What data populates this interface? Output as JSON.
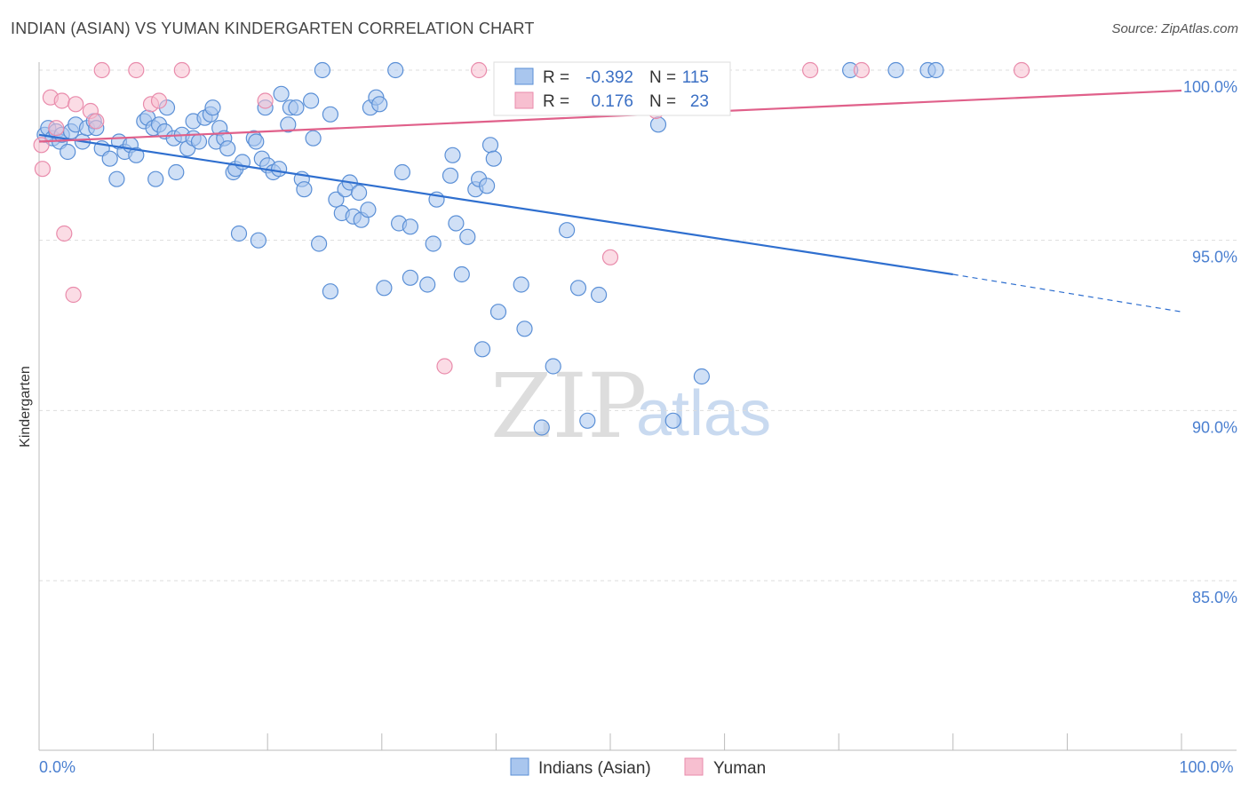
{
  "header": {
    "title": "INDIAN (ASIAN) VS YUMAN KINDERGARTEN CORRELATION CHART",
    "source": "Source: ZipAtlas.com"
  },
  "legend": {
    "r_label": "R =",
    "n_label": "N =",
    "rows": [
      {
        "r": "-0.392",
        "n": "115"
      },
      {
        "r": "0.176",
        "n": "23"
      }
    ]
  },
  "bottom_legend": [
    "Indians (Asian)",
    "Yuman"
  ],
  "watermark": {
    "zip": "ZIP",
    "atlas": "atlas"
  },
  "chart_data": {
    "type": "scatter",
    "ylabel": "Kindergarten",
    "xlim": [
      0,
      100
    ],
    "ylim": [
      80.5,
      101.0
    ],
    "x_tick_labels": [
      {
        "value": 0,
        "label": "0.0%"
      },
      {
        "value": 100,
        "label": "100.0%"
      }
    ],
    "y_ticks": [
      {
        "value": 100,
        "label": "100.0%"
      },
      {
        "value": 95,
        "label": "95.0%"
      },
      {
        "value": 90,
        "label": "90.0%"
      },
      {
        "value": 85,
        "label": "85.0%"
      }
    ],
    "grid": true,
    "colors": {
      "blue_fill": "#a9c6ee",
      "blue_stroke": "#5a8fd6",
      "blue_line": "#2f6fcf",
      "pink_fill": "#f7bfd0",
      "pink_stroke": "#e98bab",
      "pink_line": "#e0608a",
      "tick": "#4a7fd0"
    },
    "series": [
      {
        "name": "Indians (Asian)",
        "trend": {
          "x0": 0,
          "y0": 98.1,
          "x1": 80,
          "y1": 94.0,
          "dash_to_x": 100,
          "dash_to_y": 92.9
        },
        "points": [
          [
            0.5,
            98.1
          ],
          [
            0.8,
            98.3
          ],
          [
            1.2,
            98.0
          ],
          [
            1.5,
            98.2
          ],
          [
            1.8,
            97.9
          ],
          [
            2.0,
            98.1
          ],
          [
            2.5,
            97.6
          ],
          [
            2.8,
            98.2
          ],
          [
            3.2,
            98.4
          ],
          [
            3.8,
            97.9
          ],
          [
            4.2,
            98.3
          ],
          [
            4.8,
            98.5
          ],
          [
            5.0,
            98.3
          ],
          [
            5.5,
            97.7
          ],
          [
            6.2,
            97.4
          ],
          [
            6.8,
            96.8
          ],
          [
            7.0,
            97.9
          ],
          [
            7.5,
            97.6
          ],
          [
            8.0,
            97.8
          ],
          [
            8.5,
            97.5
          ],
          [
            9.2,
            98.5
          ],
          [
            9.5,
            98.6
          ],
          [
            10.0,
            98.3
          ],
          [
            10.2,
            96.8
          ],
          [
            10.5,
            98.4
          ],
          [
            11.0,
            98.2
          ],
          [
            11.2,
            98.9
          ],
          [
            11.8,
            98.0
          ],
          [
            12.0,
            97.0
          ],
          [
            12.5,
            98.1
          ],
          [
            13.0,
            97.7
          ],
          [
            13.5,
            98.0
          ],
          [
            13.5,
            98.5
          ],
          [
            14.0,
            97.9
          ],
          [
            14.5,
            98.6
          ],
          [
            15.0,
            98.7
          ],
          [
            15.2,
            98.9
          ],
          [
            15.5,
            97.9
          ],
          [
            15.8,
            98.3
          ],
          [
            16.2,
            98.0
          ],
          [
            16.5,
            97.7
          ],
          [
            17.0,
            97.0
          ],
          [
            17.2,
            97.1
          ],
          [
            17.5,
            95.2
          ],
          [
            17.8,
            97.3
          ],
          [
            18.8,
            98.0
          ],
          [
            19.0,
            97.9
          ],
          [
            19.2,
            95.0
          ],
          [
            19.5,
            97.4
          ],
          [
            19.8,
            98.9
          ],
          [
            20.0,
            97.2
          ],
          [
            20.5,
            97.0
          ],
          [
            21.0,
            97.1
          ],
          [
            21.2,
            99.3
          ],
          [
            21.8,
            98.4
          ],
          [
            22.0,
            98.9
          ],
          [
            22.5,
            98.9
          ],
          [
            23.0,
            96.8
          ],
          [
            23.2,
            96.5
          ],
          [
            23.8,
            99.1
          ],
          [
            24.0,
            98.0
          ],
          [
            24.5,
            94.9
          ],
          [
            24.8,
            100.0
          ],
          [
            25.5,
            98.7
          ],
          [
            25.5,
            93.5
          ],
          [
            26.0,
            96.2
          ],
          [
            26.5,
            95.8
          ],
          [
            26.8,
            96.5
          ],
          [
            27.2,
            96.7
          ],
          [
            27.5,
            95.7
          ],
          [
            28.0,
            96.4
          ],
          [
            28.2,
            95.6
          ],
          [
            28.8,
            95.9
          ],
          [
            29.0,
            98.9
          ],
          [
            29.5,
            99.2
          ],
          [
            29.8,
            99.0
          ],
          [
            30.2,
            93.6
          ],
          [
            31.2,
            100.0
          ],
          [
            31.5,
            95.5
          ],
          [
            31.8,
            97.0
          ],
          [
            32.5,
            93.9
          ],
          [
            32.5,
            95.4
          ],
          [
            34.0,
            93.7
          ],
          [
            34.5,
            94.9
          ],
          [
            34.8,
            96.2
          ],
          [
            36.0,
            96.9
          ],
          [
            36.2,
            97.5
          ],
          [
            36.5,
            95.5
          ],
          [
            37.0,
            94.0
          ],
          [
            37.5,
            95.1
          ],
          [
            38.2,
            96.5
          ],
          [
            38.5,
            96.8
          ],
          [
            38.8,
            91.8
          ],
          [
            39.2,
            96.6
          ],
          [
            39.5,
            97.8
          ],
          [
            39.8,
            97.4
          ],
          [
            40.2,
            92.9
          ],
          [
            42.2,
            93.7
          ],
          [
            42.5,
            92.4
          ],
          [
            44.0,
            89.5
          ],
          [
            45.0,
            91.3
          ],
          [
            46.0,
            100.0
          ],
          [
            46.2,
            95.3
          ],
          [
            47.2,
            93.6
          ],
          [
            48.0,
            89.7
          ],
          [
            49.0,
            93.4
          ],
          [
            50.0,
            100.0
          ],
          [
            52.5,
            100.0
          ],
          [
            54.2,
            98.4
          ],
          [
            55.5,
            89.7
          ],
          [
            58.0,
            91.0
          ],
          [
            71.0,
            100.0
          ],
          [
            75.0,
            100.0
          ],
          [
            77.8,
            100.0
          ],
          [
            78.5,
            100.0
          ]
        ]
      },
      {
        "name": "Yuman",
        "trend": {
          "x0": 0,
          "y0": 97.9,
          "x1": 100,
          "y1": 99.4
        },
        "points": [
          [
            0.2,
            97.8
          ],
          [
            0.3,
            97.1
          ],
          [
            1.0,
            99.2
          ],
          [
            1.5,
            98.3
          ],
          [
            2.0,
            99.1
          ],
          [
            2.2,
            95.2
          ],
          [
            3.0,
            93.4
          ],
          [
            3.2,
            99.0
          ],
          [
            4.5,
            98.8
          ],
          [
            5.0,
            98.5
          ],
          [
            5.5,
            100.0
          ],
          [
            8.5,
            100.0
          ],
          [
            9.8,
            99.0
          ],
          [
            10.5,
            99.1
          ],
          [
            12.5,
            100.0
          ],
          [
            19.8,
            99.1
          ],
          [
            35.5,
            91.3
          ],
          [
            38.5,
            100.0
          ],
          [
            50.0,
            94.5
          ],
          [
            54.0,
            98.8
          ],
          [
            67.5,
            100.0
          ],
          [
            72.0,
            100.0
          ],
          [
            86.0,
            100.0
          ]
        ]
      }
    ]
  }
}
